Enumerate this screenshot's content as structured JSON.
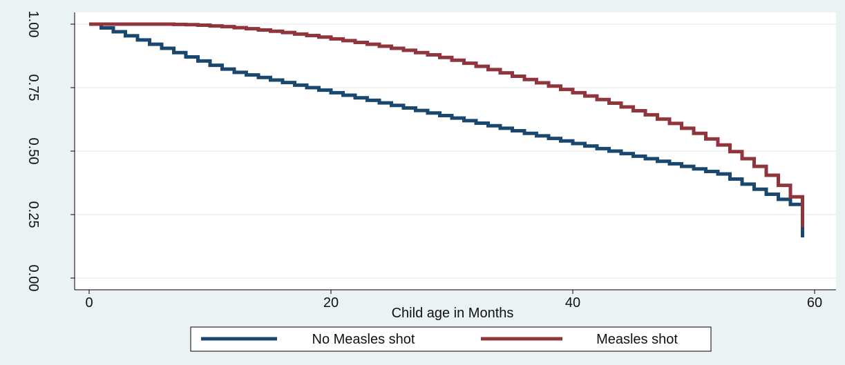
{
  "chart_data": {
    "type": "line",
    "step": true,
    "title": "",
    "xlabel": "Child age in Months",
    "ylabel": "",
    "xlim": [
      0,
      60
    ],
    "ylim": [
      0,
      1
    ],
    "xticks": [
      0,
      20,
      40,
      60
    ],
    "yticks": [
      0,
      0.25,
      0.5,
      0.75,
      1
    ],
    "xtick_labels": [
      "0",
      "20",
      "40",
      "60"
    ],
    "ytick_labels": [
      "0.00",
      "0.25",
      "0.50",
      "0.75",
      "1.00"
    ],
    "grid": true,
    "legend_position": "bottom",
    "background_color": "#eaf2f3",
    "plot_background_color": "#ffffff",
    "series": [
      {
        "name": "No Measles shot",
        "color": "#1a476f",
        "points": [
          [
            0,
            1.0
          ],
          [
            1,
            0.985
          ],
          [
            2,
            0.97
          ],
          [
            3,
            0.954
          ],
          [
            4,
            0.938
          ],
          [
            5,
            0.921
          ],
          [
            6,
            0.905
          ],
          [
            7,
            0.888
          ],
          [
            8,
            0.871
          ],
          [
            9,
            0.855
          ],
          [
            10,
            0.838
          ],
          [
            11,
            0.823
          ],
          [
            12,
            0.81
          ],
          [
            13,
            0.8
          ],
          [
            14,
            0.79
          ],
          [
            15,
            0.78
          ],
          [
            16,
            0.77
          ],
          [
            17,
            0.76
          ],
          [
            18,
            0.75
          ],
          [
            19,
            0.74
          ],
          [
            20,
            0.73
          ],
          [
            21,
            0.72
          ],
          [
            22,
            0.71
          ],
          [
            23,
            0.7
          ],
          [
            24,
            0.69
          ],
          [
            25,
            0.68
          ],
          [
            26,
            0.67
          ],
          [
            27,
            0.66
          ],
          [
            28,
            0.65
          ],
          [
            29,
            0.64
          ],
          [
            30,
            0.63
          ],
          [
            31,
            0.62
          ],
          [
            32,
            0.61
          ],
          [
            33,
            0.6
          ],
          [
            34,
            0.59
          ],
          [
            35,
            0.58
          ],
          [
            36,
            0.57
          ],
          [
            37,
            0.56
          ],
          [
            38,
            0.55
          ],
          [
            39,
            0.54
          ],
          [
            40,
            0.53
          ],
          [
            41,
            0.52
          ],
          [
            42,
            0.51
          ],
          [
            43,
            0.5
          ],
          [
            44,
            0.49
          ],
          [
            45,
            0.48
          ],
          [
            46,
            0.47
          ],
          [
            47,
            0.46
          ],
          [
            48,
            0.45
          ],
          [
            49,
            0.44
          ],
          [
            50,
            0.43
          ],
          [
            51,
            0.42
          ],
          [
            52,
            0.41
          ],
          [
            53,
            0.39
          ],
          [
            54,
            0.37
          ],
          [
            55,
            0.35
          ],
          [
            56,
            0.33
          ],
          [
            57,
            0.31
          ],
          [
            58,
            0.29
          ],
          [
            59,
            0.18
          ],
          [
            60,
            0.16
          ]
        ]
      },
      {
        "name": "Measles shot",
        "color": "#90353b",
        "points": [
          [
            0,
            1.0
          ],
          [
            1,
            1.0
          ],
          [
            2,
            1.0
          ],
          [
            3,
            1.0
          ],
          [
            4,
            1.0
          ],
          [
            5,
            1.0
          ],
          [
            6,
            1.0
          ],
          [
            7,
            0.999
          ],
          [
            8,
            0.998
          ],
          [
            9,
            0.996
          ],
          [
            10,
            0.993
          ],
          [
            11,
            0.99
          ],
          [
            12,
            0.986
          ],
          [
            13,
            0.982
          ],
          [
            14,
            0.977
          ],
          [
            15,
            0.972
          ],
          [
            16,
            0.967
          ],
          [
            17,
            0.961
          ],
          [
            18,
            0.955
          ],
          [
            19,
            0.949
          ],
          [
            20,
            0.942
          ],
          [
            21,
            0.935
          ],
          [
            22,
            0.928
          ],
          [
            23,
            0.921
          ],
          [
            24,
            0.913
          ],
          [
            25,
            0.905
          ],
          [
            26,
            0.897
          ],
          [
            27,
            0.888
          ],
          [
            28,
            0.879
          ],
          [
            29,
            0.869
          ],
          [
            30,
            0.858
          ],
          [
            31,
            0.846
          ],
          [
            32,
            0.834
          ],
          [
            33,
            0.821
          ],
          [
            34,
            0.808
          ],
          [
            35,
            0.795
          ],
          [
            36,
            0.782
          ],
          [
            37,
            0.769
          ],
          [
            38,
            0.756
          ],
          [
            39,
            0.743
          ],
          [
            40,
            0.73
          ],
          [
            41,
            0.717
          ],
          [
            42,
            0.703
          ],
          [
            43,
            0.689
          ],
          [
            44,
            0.674
          ],
          [
            45,
            0.659
          ],
          [
            46,
            0.643
          ],
          [
            47,
            0.626
          ],
          [
            48,
            0.609
          ],
          [
            49,
            0.59
          ],
          [
            50,
            0.57
          ],
          [
            51,
            0.548
          ],
          [
            52,
            0.524
          ],
          [
            53,
            0.498
          ],
          [
            54,
            0.47
          ],
          [
            55,
            0.44
          ],
          [
            56,
            0.405
          ],
          [
            57,
            0.365
          ],
          [
            58,
            0.32
          ],
          [
            59,
            0.25
          ],
          [
            60,
            0.2
          ]
        ]
      }
    ]
  }
}
